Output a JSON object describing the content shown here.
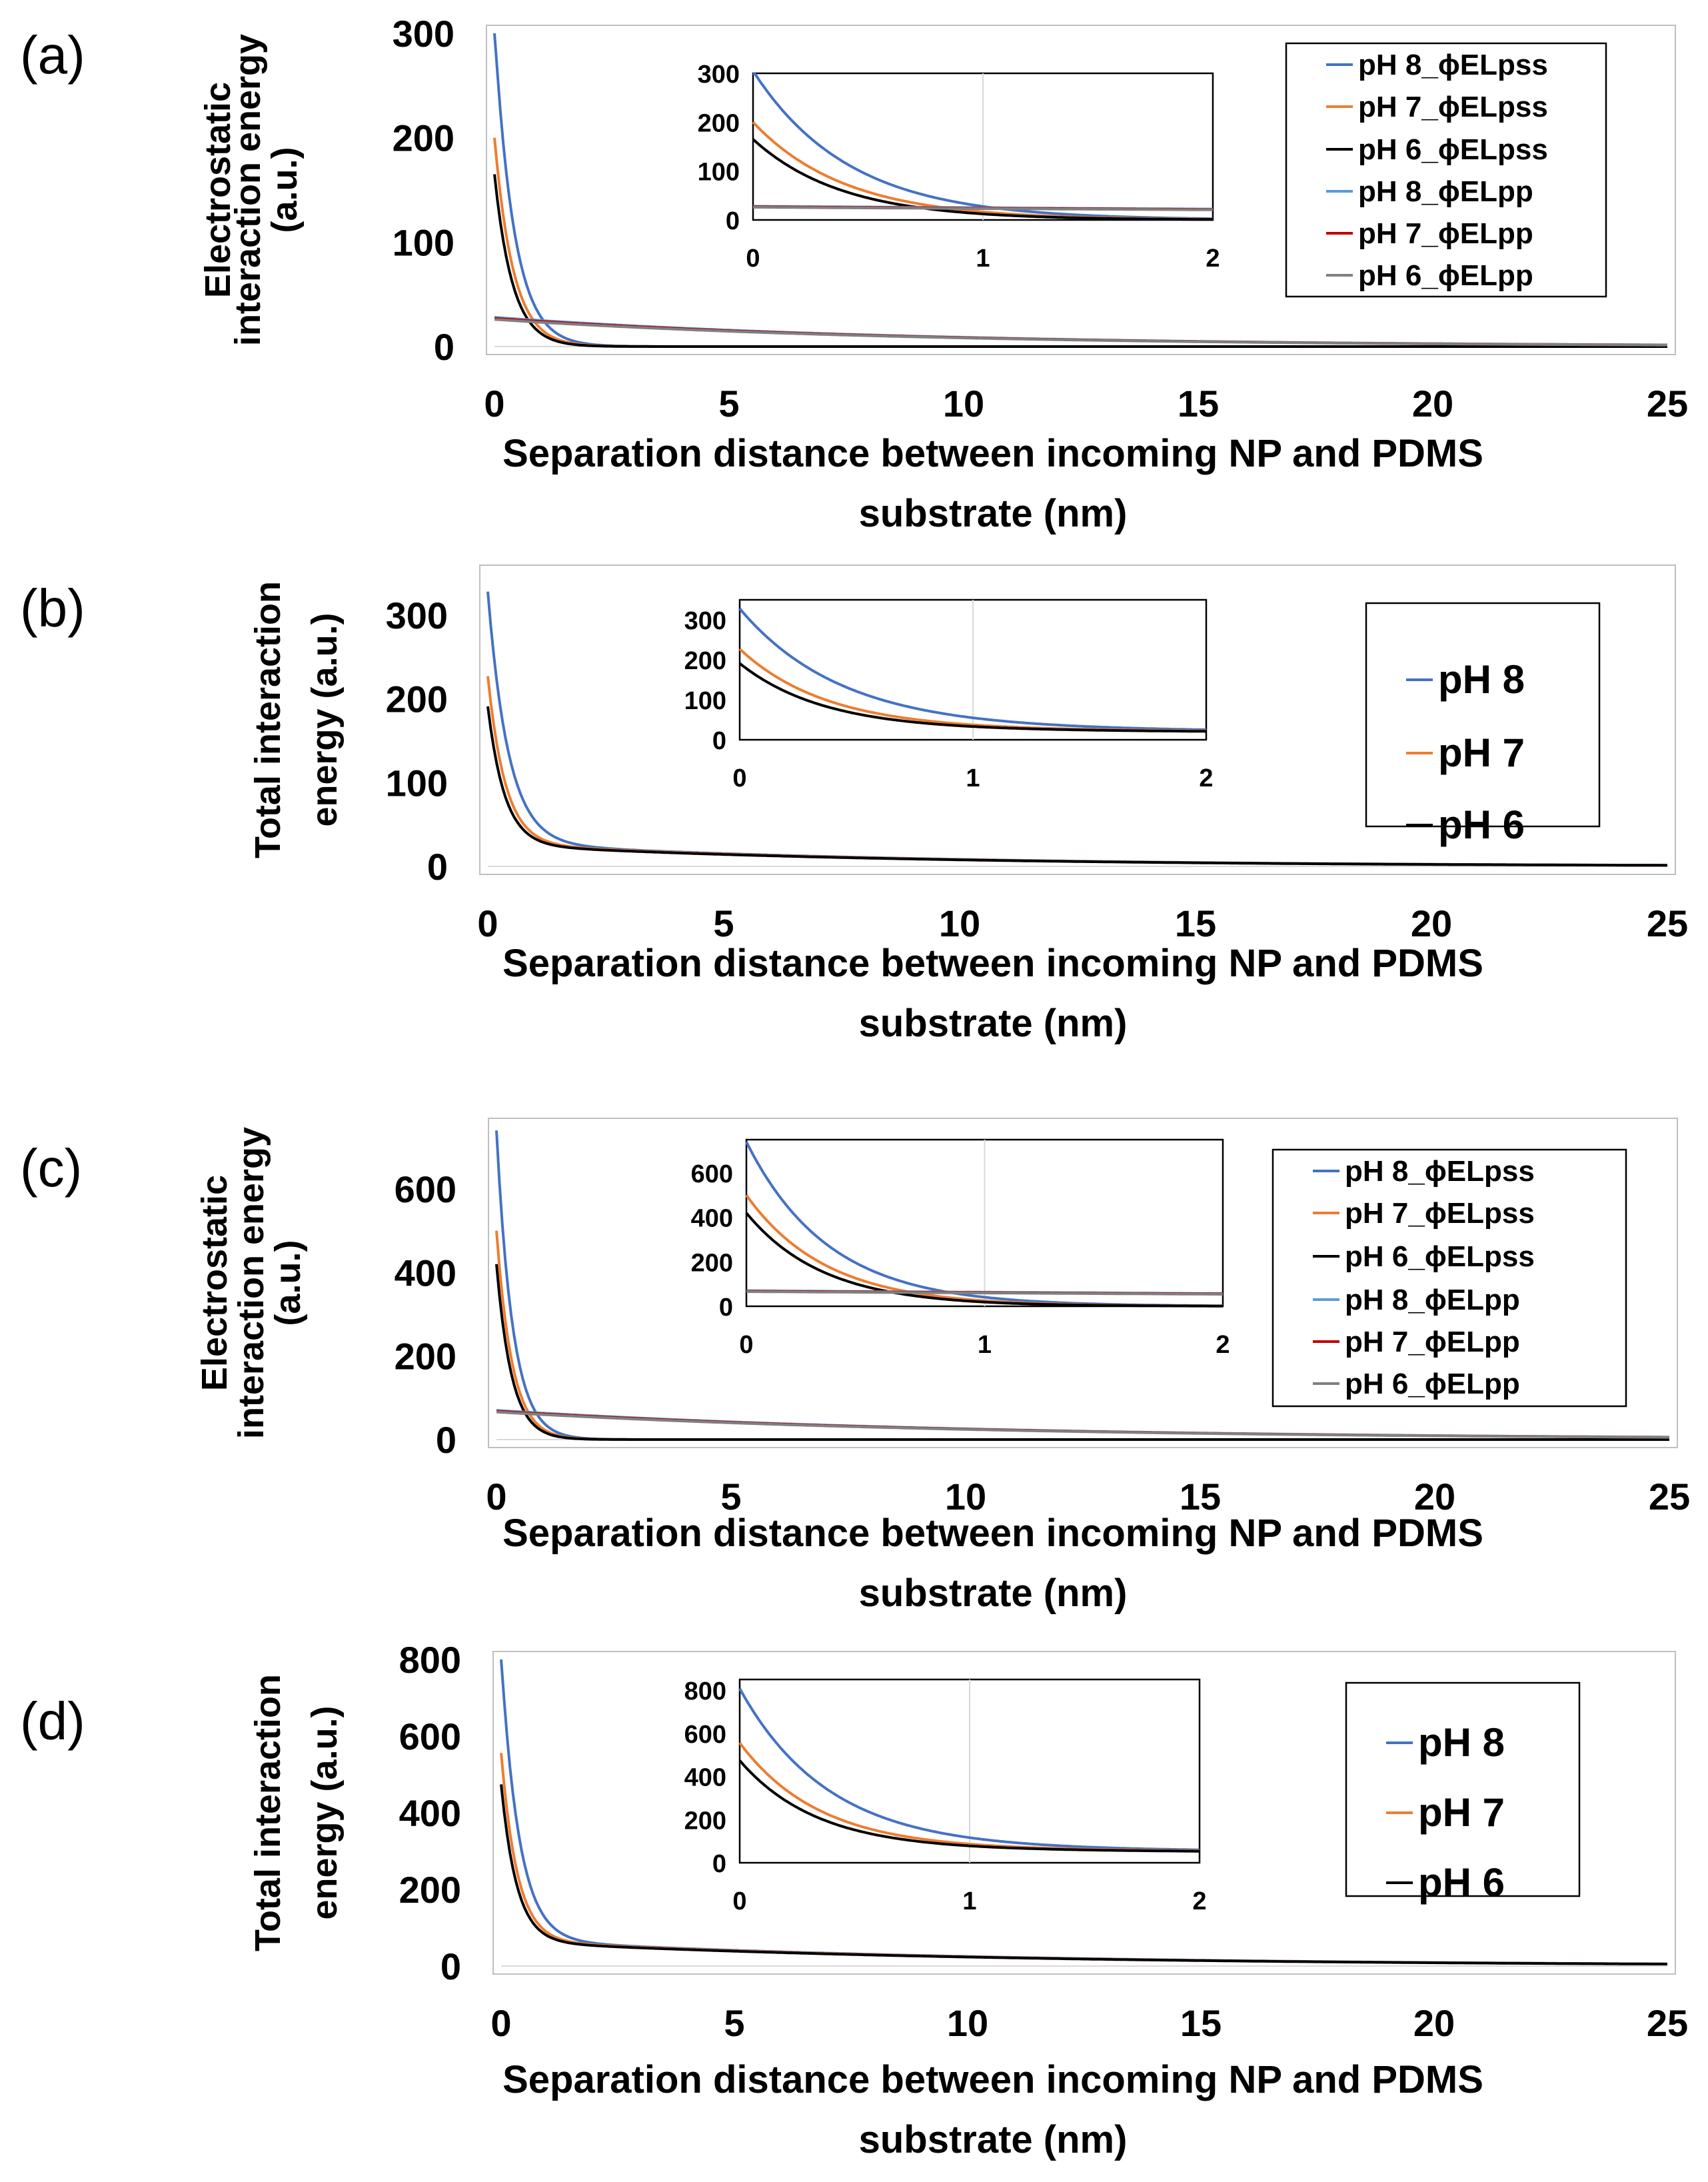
{
  "colors": {
    "pH8": "#4472C4",
    "pH7": "#ED7D31",
    "pH6": "#000000",
    "pp8": "#5B9BD5",
    "pp7": "#C00000",
    "pp6": "#808080",
    "frame": "#BFBFBF",
    "grid": "#D9D9D9"
  },
  "chart_data": [
    {
      "panel": "(a)",
      "type": "line",
      "ylabel": [
        "Electrostatic",
        "interaction energy",
        "(a.u.)"
      ],
      "xlabel": [
        "Separation distance between incoming NP and PDMS",
        "substrate (nm)"
      ],
      "xlim": [
        0,
        25
      ],
      "ylim": [
        0,
        300
      ],
      "xticks": [
        "0",
        "5",
        "10",
        "15",
        "20",
        "25"
      ],
      "yticks": [
        "0",
        "100",
        "200",
        "300"
      ],
      "inset": {
        "xlim": [
          0,
          2
        ],
        "ylim": [
          0,
          300
        ],
        "xticks": [
          "0",
          "1",
          "2"
        ],
        "yticks": [
          "0",
          "100",
          "200",
          "300"
        ]
      },
      "legend_location": "top-right",
      "series": [
        {
          "name": "pH 8_ϕELpss",
          "color_key": "pH8",
          "model": "exp",
          "a": 305,
          "k": 2.4
        },
        {
          "name": "pH 7_ϕELpss",
          "color_key": "pH7",
          "model": "exp",
          "a": 200,
          "k": 2.5
        },
        {
          "name": "pH 6_ϕELpss",
          "color_key": "pH6",
          "model": "exp",
          "a": 165,
          "k": 2.6
        },
        {
          "name": "pH 8_ϕELpp",
          "color_key": "pp8",
          "model": "exp",
          "a": 28,
          "k": 0.115
        },
        {
          "name": "pH 7_ϕELpp",
          "color_key": "pp7",
          "model": "exp",
          "a": 27,
          "k": 0.115
        },
        {
          "name": "pH 6_ϕELpp",
          "color_key": "pp6",
          "model": "exp",
          "a": 26,
          "k": 0.115
        }
      ]
    },
    {
      "panel": "(b)",
      "type": "line",
      "ylabel": [
        "Total interaction",
        "energy (a.u.)"
      ],
      "xlabel": [
        "Separation distance between incoming NP and PDMS",
        "substrate (nm)"
      ],
      "xlim": [
        0,
        25
      ],
      "ylim": [
        0,
        350
      ],
      "xticks": [
        "0",
        "5",
        "10",
        "15",
        "20",
        "25"
      ],
      "yticks": [
        "0",
        "100",
        "200",
        "300"
      ],
      "inset": {
        "xlim": [
          0,
          2
        ],
        "ylim": [
          0,
          350
        ],
        "xticks": [
          "0",
          "1",
          "2"
        ],
        "yticks": [
          "0",
          "100",
          "200",
          "300"
        ]
      },
      "legend_location": "top-right",
      "series": [
        {
          "name": "pH 8",
          "color_key": "pH8",
          "model": "exp2",
          "a": 300,
          "k": 2.3,
          "b": 28,
          "m": 0.12
        },
        {
          "name": "pH 7",
          "color_key": "pH7",
          "model": "exp2",
          "a": 200,
          "k": 2.7,
          "b": 27,
          "m": 0.12
        },
        {
          "name": "pH 6",
          "color_key": "pH6",
          "model": "exp2",
          "a": 165,
          "k": 2.8,
          "b": 26,
          "m": 0.12
        }
      ]
    },
    {
      "panel": "(c)",
      "type": "line",
      "ylabel": [
        "Electrostatic",
        "interaction energy",
        "(a.u.)"
      ],
      "xlabel": [
        "Separation distance between incoming NP and PDMS",
        "substrate (nm)"
      ],
      "xlim": [
        0,
        25
      ],
      "ylim": [
        0,
        750
      ],
      "xticks": [
        "0",
        "5",
        "10",
        "15",
        "20",
        "25"
      ],
      "yticks": [
        "0",
        "200",
        "400",
        "600"
      ],
      "inset": {
        "xlim": [
          0,
          2
        ],
        "ylim": [
          0,
          750
        ],
        "xticks": [
          "0",
          "1",
          "2"
        ],
        "yticks": [
          "0",
          "200",
          "400",
          "600"
        ]
      },
      "legend_location": "top-right",
      "series": [
        {
          "name": "pH 8_ϕELpss",
          "color_key": "pH8",
          "model": "exp",
          "a": 740,
          "k": 2.9
        },
        {
          "name": "pH 7_ϕELpss",
          "color_key": "pH7",
          "model": "exp",
          "a": 500,
          "k": 3.0
        },
        {
          "name": "pH 6_ϕELpss",
          "color_key": "pH6",
          "model": "exp",
          "a": 420,
          "k": 3.1
        },
        {
          "name": "pH 8_ϕELpp",
          "color_key": "pp8",
          "model": "exp",
          "a": 70,
          "k": 0.1
        },
        {
          "name": "pH 7_ϕELpp",
          "color_key": "pp7",
          "model": "exp",
          "a": 68,
          "k": 0.1
        },
        {
          "name": "pH 6_ϕELpp",
          "color_key": "pp6",
          "model": "exp",
          "a": 66,
          "k": 0.1
        }
      ]
    },
    {
      "panel": "(d)",
      "type": "line",
      "ylabel": [
        "Total interaction",
        "energy (a.u.)"
      ],
      "xlabel": [
        "Separation distance between incoming NP and PDMS",
        "substrate (nm)"
      ],
      "xlim": [
        0,
        25
      ],
      "ylim": [
        0,
        800
      ],
      "xticks": [
        "0",
        "5",
        "10",
        "15",
        "20",
        "25"
      ],
      "yticks": [
        "0",
        "200",
        "400",
        "600",
        "800"
      ],
      "inset": {
        "xlim": [
          0,
          2
        ],
        "ylim": [
          0,
          850
        ],
        "xticks": [
          "0",
          "1",
          "2"
        ],
        "yticks": [
          "0",
          "200",
          "400",
          "600",
          "800"
        ]
      },
      "legend_location": "top-right",
      "series": [
        {
          "name": "pH 8",
          "color_key": "pH8",
          "model": "exp2",
          "a": 740,
          "k": 2.6,
          "b": 68,
          "m": 0.1
        },
        {
          "name": "pH 7",
          "color_key": "pH7",
          "model": "exp2",
          "a": 490,
          "k": 2.9,
          "b": 66,
          "m": 0.1
        },
        {
          "name": "pH 6",
          "color_key": "pH6",
          "model": "exp2",
          "a": 410,
          "k": 3.0,
          "b": 64,
          "m": 0.1
        }
      ]
    }
  ]
}
